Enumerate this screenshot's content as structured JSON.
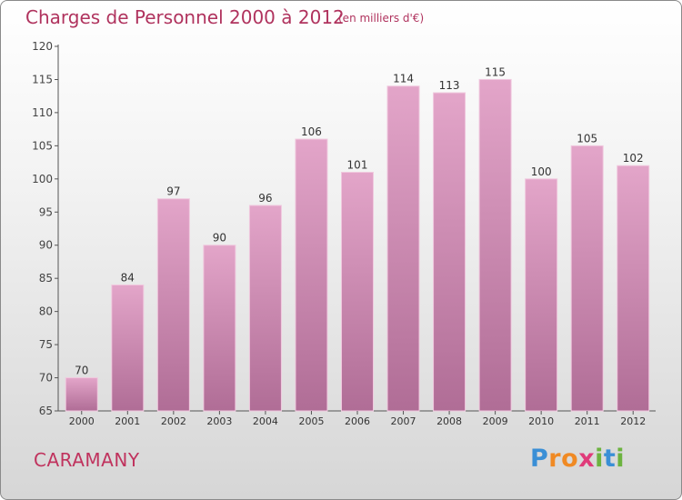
{
  "header": {
    "title": "Charges de Personnel 2000 à 2012",
    "subtitle": "(en milliers d'€)"
  },
  "footer": {
    "commune": "CARAMANY",
    "brand": "Proxiti",
    "brand_letters": [
      {
        "ch": "P",
        "color": "#3a8fd6"
      },
      {
        "ch": "r",
        "color": "#f08a24"
      },
      {
        "ch": "o",
        "color": "#f08a24"
      },
      {
        "ch": "x",
        "color": "#e03b7a"
      },
      {
        "ch": "i",
        "color": "#6cb33f"
      },
      {
        "ch": "t",
        "color": "#3a8fd6"
      },
      {
        "ch": "i",
        "color": "#6cb33f"
      }
    ]
  },
  "colors": {
    "bar_top": "#e3a5c9",
    "bar_bottom": "#b06d96",
    "bar_edge": "#f0c8de",
    "accent": "#b0335e"
  },
  "chart_data": {
    "type": "bar",
    "categories": [
      "2000",
      "2001",
      "2002",
      "2003",
      "2004",
      "2005",
      "2006",
      "2007",
      "2008",
      "2009",
      "2010",
      "2011",
      "2012"
    ],
    "values": [
      70,
      84,
      97,
      90,
      96,
      106,
      101,
      114,
      113,
      115,
      100,
      105,
      102
    ],
    "ylim": [
      65,
      120
    ],
    "yticks": [
      65,
      70,
      75,
      80,
      85,
      90,
      95,
      100,
      105,
      110,
      115,
      120
    ],
    "grid": false,
    "data_labels": true
  }
}
